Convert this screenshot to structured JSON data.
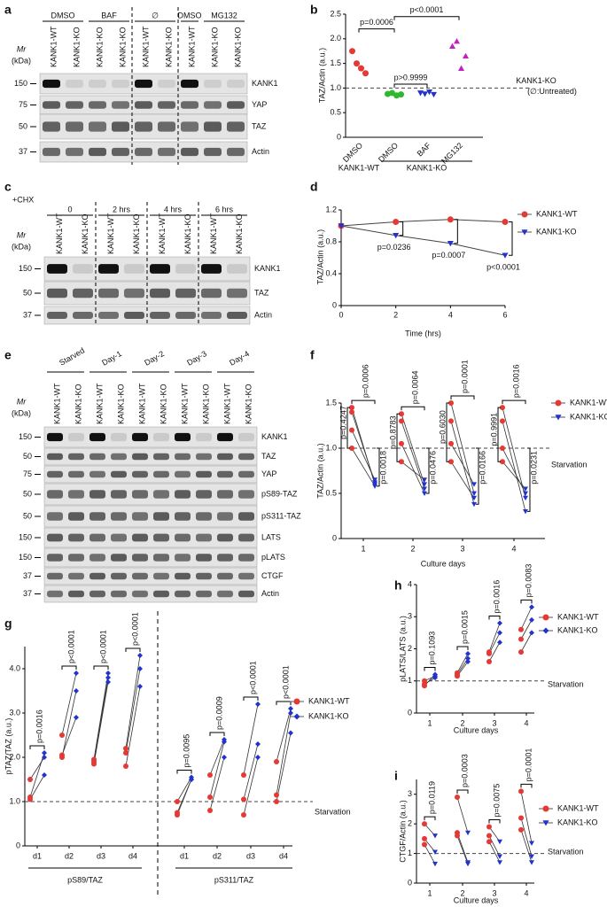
{
  "blots": [
    {
      "letter": "a",
      "mr_label": "Mr",
      "mr_unit": "(kDa)",
      "groups": [
        "DMSO",
        "BAF",
        "∅",
        "DMSO",
        "MG132"
      ],
      "lanes": [
        "KANK1-WT",
        "KANK1-KO",
        "KANK1-KO",
        "KANK1-KO",
        "KANK1-WT",
        "KANK1-KO",
        "KANK1-WT",
        "KANK1-KO",
        "KANK1-KO"
      ],
      "rows": [
        {
          "name": "KANK1",
          "mr": 150
        },
        {
          "name": "YAP",
          "mr": 75
        },
        {
          "name": "TAZ",
          "mr": 50
        },
        {
          "name": "Actin",
          "mr": 37
        }
      ]
    },
    {
      "letter": "c",
      "mr_label": "Mr",
      "mr_unit": "(kDa)",
      "treatment": "+CHX",
      "groups": [
        "0",
        "2 hrs",
        "4 hrs",
        "6 hrs"
      ],
      "lanes": [
        "KANK1-WT",
        "KANK1-KO",
        "KANK1-WT",
        "KANK1-KO",
        "KANK1-WT",
        "KANK1-KO",
        "KANK1-WT",
        "KANK1-KO"
      ],
      "rows": [
        {
          "name": "KANK1",
          "mr": 150
        },
        {
          "name": "TAZ",
          "mr": 50
        },
        {
          "name": "Actin",
          "mr": 37
        }
      ]
    },
    {
      "letter": "e",
      "mr_label": "Mr",
      "mr_unit": "(kDa)",
      "groups": [
        "Starved",
        "Day-1",
        "Day-2",
        "Day-3",
        "Day-4"
      ],
      "lanes": [
        "KANK1-WT",
        "KANK1-KO",
        "KANK1-WT",
        "KANK1-KO",
        "KANK1-WT",
        "KANK1-KO",
        "KANK1-WT",
        "KANK1-KO",
        "KANK1-WT",
        "KANK1-KO"
      ],
      "rows": [
        {
          "name": "KANK1",
          "mr": 150
        },
        {
          "name": "TAZ",
          "mr": 50
        },
        {
          "name": "YAP",
          "mr": 75
        },
        {
          "name": "pS89-TAZ",
          "mr": 50
        },
        {
          "name": "pS311-TAZ",
          "mr": 50
        },
        {
          "name": "LATS",
          "mr": 150
        },
        {
          "name": "pLATS",
          "mr": 150
        },
        {
          "name": "CTGF",
          "mr": 37
        },
        {
          "name": "Actin",
          "mr": 37
        }
      ]
    }
  ],
  "chart_data": [
    {
      "type": "scatter",
      "letter": "b",
      "y_label": "TAZ/Actin (a.u.)",
      "categories": [
        "DMSO",
        "DMSO",
        "BAF",
        "MG132"
      ],
      "group_labels": [
        "KANK1-WT",
        "KANK1-KO"
      ],
      "values": [
        [
          1.75,
          1.5,
          1.4,
          1.3
        ],
        [
          0.88,
          0.9,
          0.85,
          0.87
        ],
        [
          0.9,
          0.88,
          0.92,
          0.87
        ],
        [
          1.85,
          1.95,
          1.4,
          1.65
        ]
      ],
      "colors": [
        "#e53935",
        "#2eb82e",
        "#2233cc",
        "#c020c0"
      ],
      "markers": [
        "circle",
        "circle",
        "triangle-down",
        "triangle-up"
      ],
      "ylim": [
        0,
        2.5
      ],
      "yticks": [
        0,
        0.5,
        {
          "value": 1,
          "label": "1.0"
        },
        1.5,
        {
          "value": 2,
          "label": "2.0"
        },
        2.5
      ],
      "hline": 1,
      "hline_label": "KANK1-KO",
      "hline_note": "(∅:Untreated)",
      "annotations": [
        "p=0.0006",
        "p<0.0001",
        "p>0.9999"
      ]
    },
    {
      "type": "line",
      "letter": "d",
      "y_label": "TAZ/Actin (a.u.)",
      "x_label": "Time (hrs)",
      "x": [
        0,
        2,
        4,
        6
      ],
      "series": [
        {
          "name": "KANK1-WT",
          "color": "#e53935",
          "marker": "circle",
          "values": [
            1,
            1.05,
            1.08,
            1.05
          ]
        },
        {
          "name": "KANK1-KO",
          "color": "#2233cc",
          "marker": "triangle-down",
          "values": [
            1,
            0.88,
            0.78,
            0.63
          ]
        }
      ],
      "xlim": [
        0,
        6
      ],
      "xticks": [
        0,
        2,
        4,
        6
      ],
      "ylim": [
        0,
        1.2
      ],
      "yticks": [
        0,
        0.4,
        0.8,
        1.2
      ],
      "annotations": [
        null,
        "p=0.0236",
        "p=0.0007",
        "p<0.0001"
      ]
    },
    {
      "type": "paired",
      "letter": "f",
      "y_label": "TAZ/Actin (a.u.)",
      "x_label": "Culture days",
      "categories": [
        "1",
        "2",
        "3",
        "4"
      ],
      "series": [
        {
          "name": "KANK1-WT",
          "color": "#e53935",
          "marker": "circle",
          "values": [
            [
              1.45,
              1.4,
              1.2,
              1.0
            ],
            [
              1.38,
              1.3,
              1.05,
              0.85
            ],
            [
              1.5,
              1.3,
              1.05,
              0.85
            ],
            [
              1.45,
              1.3,
              1.0,
              0.85
            ]
          ]
        },
        {
          "name": "KANK1-KO",
          "color": "#2233cc",
          "marker": "triangle-down",
          "values": [
            [
              0.6,
              0.62,
              0.65,
              0.58
            ],
            [
              0.6,
              0.55,
              0.5,
              0.65
            ],
            [
              0.5,
              0.38,
              0.6,
              0.45
            ],
            [
              0.45,
              0.3,
              0.5,
              0.55
            ]
          ]
        }
      ],
      "ylim": [
        0,
        1.5
      ],
      "yticks": [
        0,
        0.5,
        {
          "value": 1,
          "label": "1.0"
        },
        1.5
      ],
      "hline": 1,
      "hline_label": "Starvation",
      "p_values": [
        "p=0.0006",
        "p=0.0064",
        "p=0.0001",
        "p=0.0016"
      ],
      "p_values_wt": [
        "p=0.4247",
        "p=0.8783",
        "p=0.6030",
        "p=0.9991"
      ],
      "p_values_ko": [
        "p=0.0018",
        "p=0.0476",
        "p=0.0166",
        "p=0.0231"
      ]
    },
    {
      "type": "paired",
      "letter": "g",
      "y_label": "pTAZ/TAZ (a.u.)",
      "categories": [
        "d1",
        "d2",
        "d3",
        "d4",
        "d1",
        "d2",
        "d3",
        "d4"
      ],
      "category_groups": [
        "pS89/TAZ",
        "pS311/TAZ"
      ],
      "series": [
        {
          "name": "KANK1-WT",
          "color": "#e53935",
          "marker": "circle",
          "values": [
            [
              1.5,
              1.1,
              1.05
            ],
            [
              2.5,
              2.0,
              2.05
            ],
            [
              1.95,
              1.9,
              1.85
            ],
            [
              2.2,
              2.1,
              1.8
            ],
            [
              1.0,
              0.75,
              0.7
            ],
            [
              1.6,
              1.1,
              0.8
            ],
            [
              1.6,
              1.05,
              0.7
            ],
            [
              1.9,
              1.15,
              1.0
            ]
          ]
        },
        {
          "name": "KANK1-KO",
          "color": "#2233cc",
          "marker": "diamond",
          "values": [
            [
              2.0,
              2.1,
              1.6
            ],
            [
              3.9,
              3.5,
              2.9
            ],
            [
              3.9,
              3.8,
              3.7
            ],
            [
              4.3,
              4.0,
              3.6
            ],
            [
              1.55,
              1.5,
              1.5
            ],
            [
              2.4,
              2.35,
              2.0
            ],
            [
              3.2,
              2.3,
              2.0
            ],
            [
              3.1,
              3.0,
              2.55
            ]
          ]
        }
      ],
      "ylim": [
        0,
        4.5
      ],
      "yticks": [
        0,
        {
          "value": 1,
          "label": "1.0"
        },
        {
          "value": 2,
          "label": "2.0"
        },
        {
          "value": 3,
          "label": "3.0"
        },
        {
          "value": 4,
          "label": "4.0"
        }
      ],
      "hline": 1,
      "hline_label": "Starvation",
      "p_values": [
        "p=0.0016",
        "p<0.0001",
        "p<0.0001",
        "p<0.0001",
        "p=0.0095",
        "p=0.0009",
        "p<0.0001",
        "p<0.0001"
      ]
    },
    {
      "type": "paired",
      "letter": "h",
      "y_label": "pLATS/LATS (a.u.)",
      "x_label": "Culture days",
      "categories": [
        "1",
        "2",
        "3",
        "4"
      ],
      "series": [
        {
          "name": "KANK1-WT",
          "color": "#e53935",
          "marker": "circle",
          "values": [
            [
              1.0,
              0.9,
              0.85
            ],
            [
              1.25,
              1.2,
              1.15
            ],
            [
              1.9,
              1.85,
              1.6
            ],
            [
              2.6,
              2.3,
              1.9
            ]
          ]
        },
        {
          "name": "KANK1-KO",
          "color": "#2233cc",
          "marker": "diamond",
          "values": [
            [
              1.15,
              1.1,
              1.2
            ],
            [
              1.85,
              1.7,
              1.6
            ],
            [
              2.8,
              2.5,
              2.2
            ],
            [
              3.3,
              2.9,
              2.5
            ]
          ]
        }
      ],
      "ylim": [
        0,
        4
      ],
      "yticks": [
        0,
        1,
        2,
        3,
        4
      ],
      "hline": 1,
      "hline_label": "Starvation",
      "p_values": [
        "p=0.1093",
        "p=0.0015",
        "p=0.0016",
        "p=0.0083"
      ]
    },
    {
      "type": "paired",
      "letter": "i",
      "y_label": "CTGF/Actin (a.u.)",
      "x_label": "Culture days",
      "categories": [
        "1",
        "2",
        "3",
        "4"
      ],
      "series": [
        {
          "name": "KANK1-WT",
          "color": "#e53935",
          "marker": "circle",
          "values": [
            [
              2.0,
              1.5,
              1.3
            ],
            [
              2.9,
              1.7,
              1.6
            ],
            [
              1.9,
              1.6,
              1.4
            ],
            [
              3.1,
              2.2,
              1.8
            ]
          ]
        },
        {
          "name": "KANK1-KO",
          "color": "#2233cc",
          "marker": "triangle-down",
          "values": [
            [
              1.6,
              1.05,
              0.65
            ],
            [
              1.7,
              0.7,
              0.65
            ],
            [
              1.4,
              0.9,
              0.7
            ],
            [
              1.35,
              0.9,
              0.7
            ]
          ]
        }
      ],
      "ylim": [
        0,
        3.5
      ],
      "yticks": [
        0,
        1,
        2,
        3
      ],
      "hline": 1,
      "hline_label": "Starvation",
      "p_values": [
        "p=0.0119",
        "p=0.0003",
        "p=0.0075",
        "p=0.0001"
      ]
    }
  ]
}
